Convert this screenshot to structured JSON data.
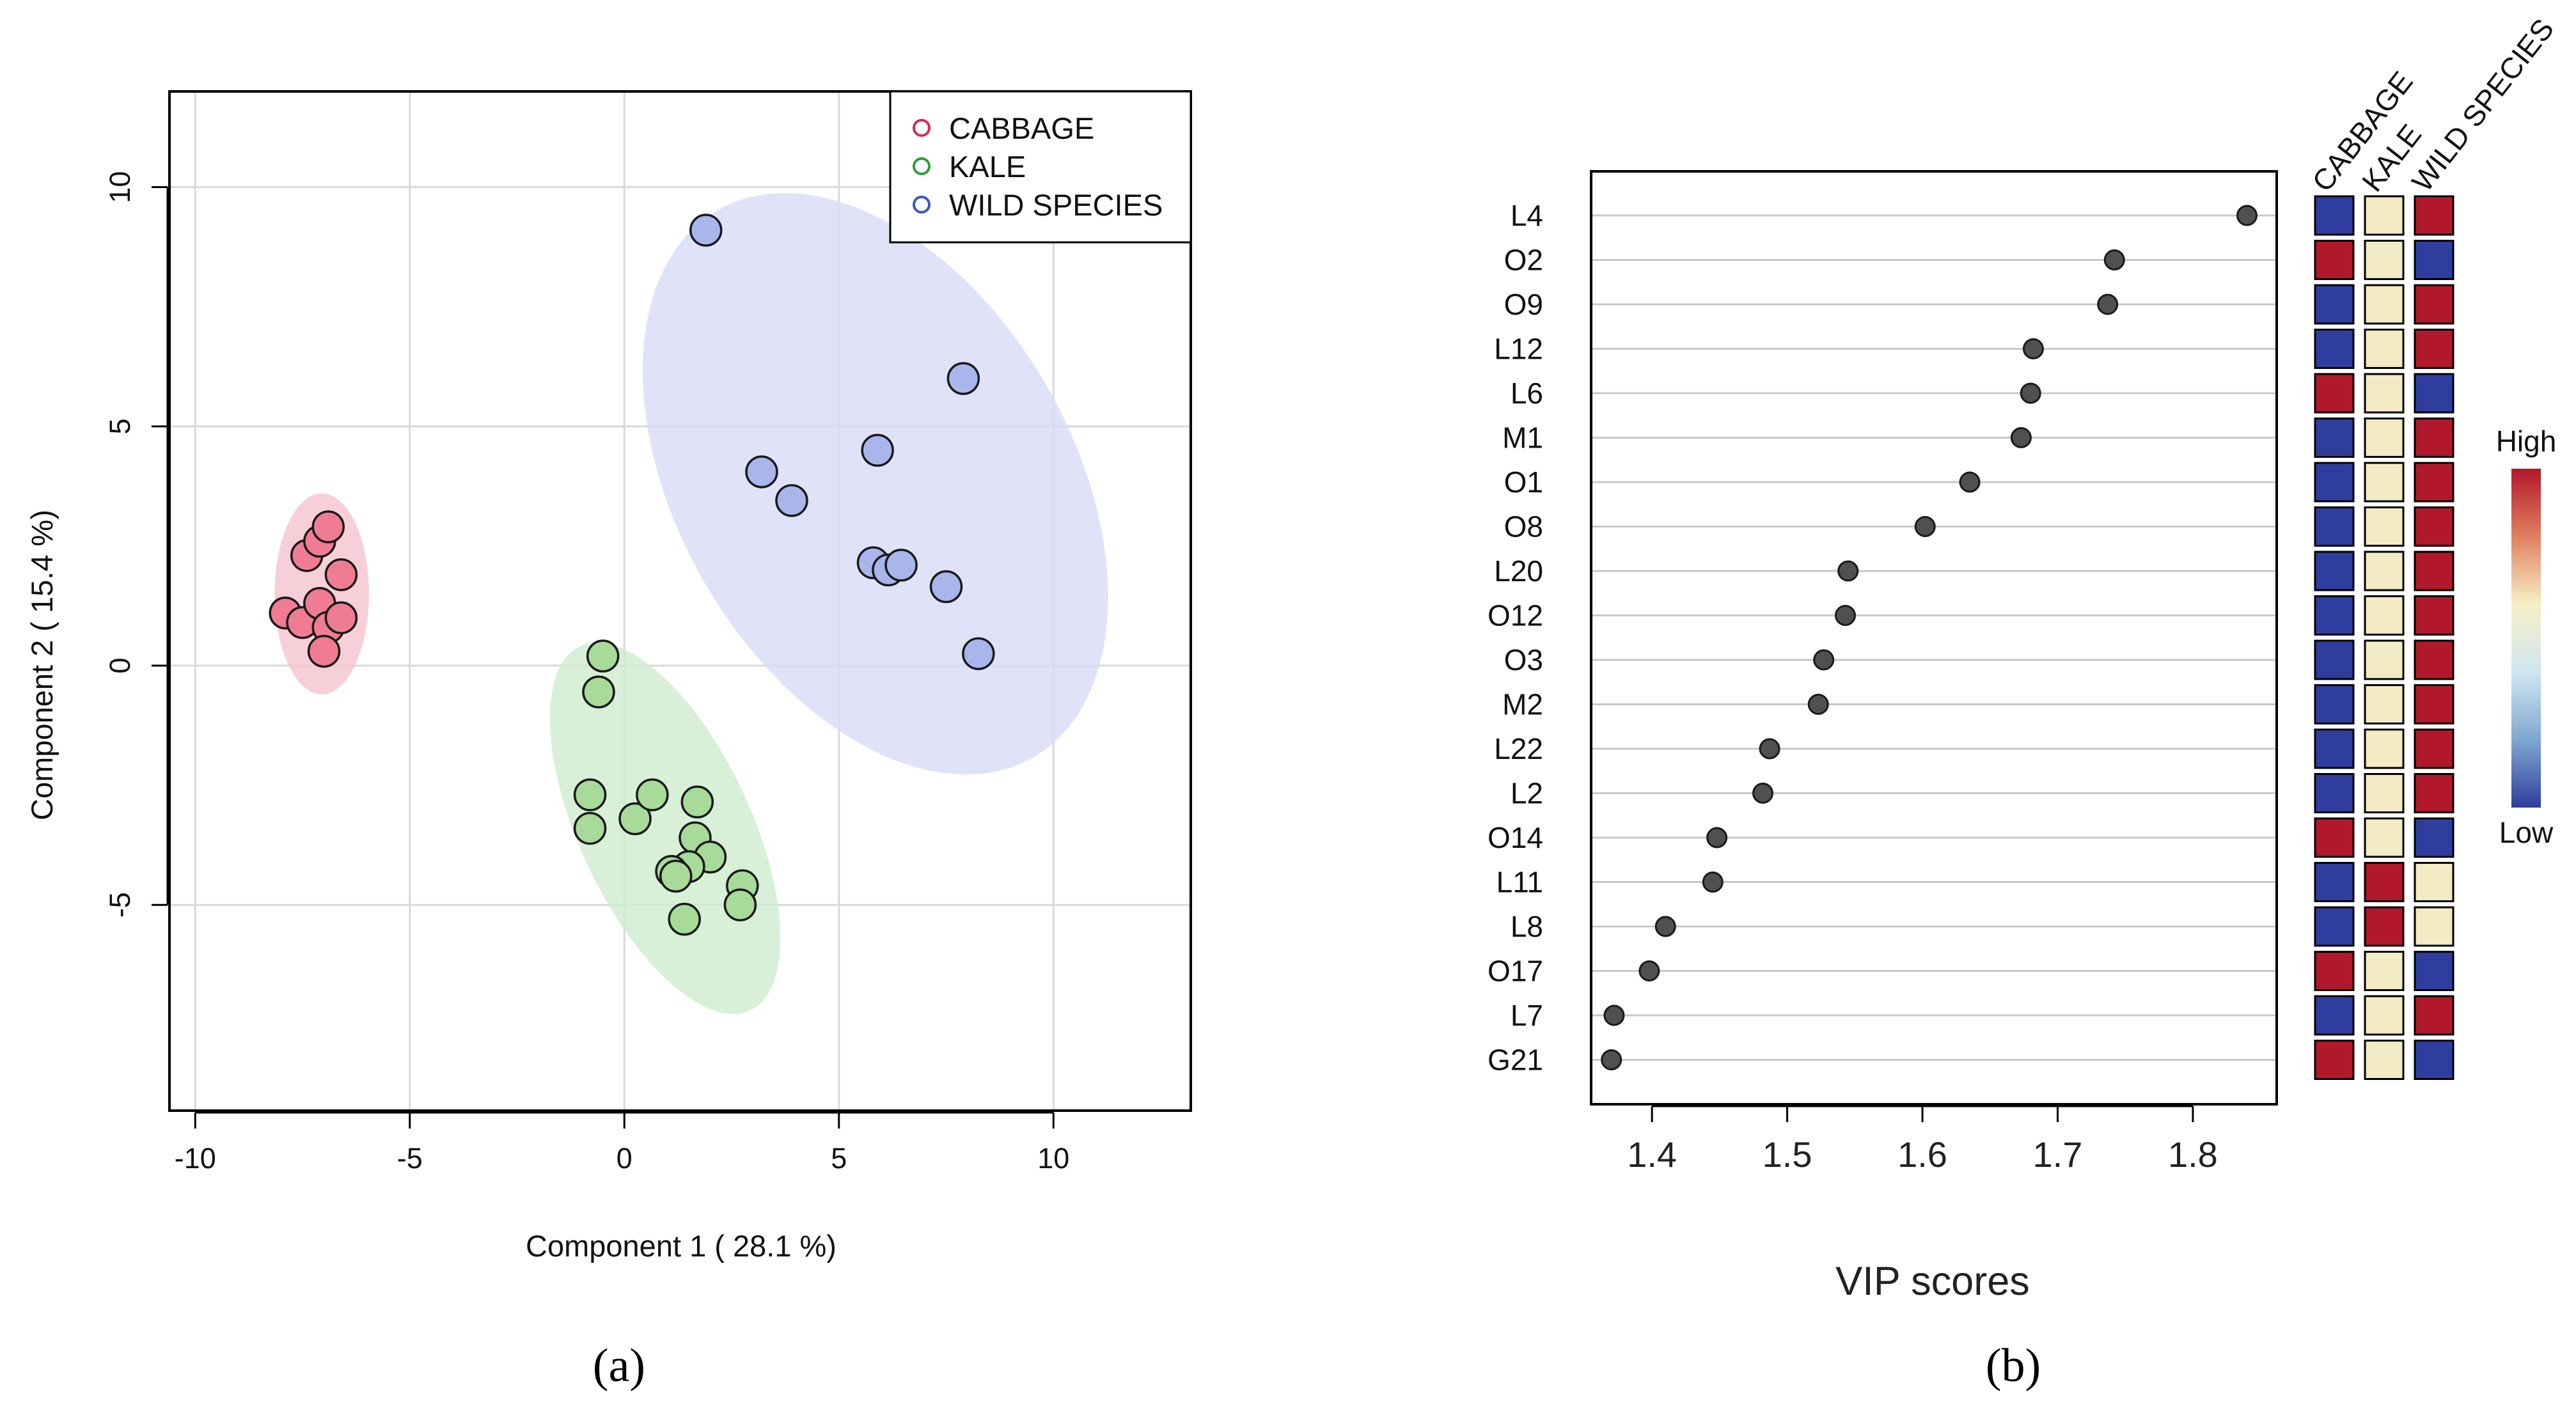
{
  "panel_a": {
    "label": "(a)",
    "chart_data": {
      "type": "scatter",
      "xlabel": "Component 1 ( 28.1 %)",
      "ylabel": "Component 2 ( 15.4 %)",
      "xlim": [
        -10.6,
        13.2
      ],
      "ylim": [
        -9.3,
        12.0
      ],
      "xticks": [
        -10,
        -5,
        0,
        5,
        10
      ],
      "yticks": [
        -5,
        0,
        5,
        10
      ],
      "grid": true,
      "legend_position": "top-right",
      "series": [
        {
          "name": "CABBAGE",
          "color": "#d6285a",
          "fill": "#f07c93",
          "ellipse_fill": "#f5c3cf",
          "points": [
            [
              -7.4,
              2.3
            ],
            [
              -7.1,
              2.6
            ],
            [
              -6.9,
              2.9
            ],
            [
              -6.6,
              1.9
            ],
            [
              -7.9,
              1.1
            ],
            [
              -7.5,
              0.9
            ],
            [
              -7.1,
              1.3
            ],
            [
              -6.9,
              0.8
            ],
            [
              -6.6,
              1.0
            ],
            [
              -7.0,
              0.3
            ]
          ]
        },
        {
          "name": "KALE",
          "color": "#2e9e3a",
          "fill": "#a8da9a",
          "ellipse_fill": "#cdeccd",
          "points": [
            [
              -0.5,
              0.2
            ],
            [
              -0.6,
              -0.55
            ],
            [
              -0.8,
              -2.7
            ],
            [
              -0.8,
              -3.4
            ],
            [
              0.25,
              -3.2
            ],
            [
              0.65,
              -2.7
            ],
            [
              1.7,
              -2.85
            ],
            [
              1.65,
              -3.6
            ],
            [
              2.0,
              -4.0
            ],
            [
              1.5,
              -4.2
            ],
            [
              1.1,
              -4.3
            ],
            [
              1.2,
              -4.4
            ],
            [
              2.75,
              -4.6
            ],
            [
              2.7,
              -5.0
            ],
            [
              1.4,
              -5.3
            ]
          ]
        },
        {
          "name": "WILD SPECIES",
          "color": "#3a55c8",
          "fill": "#a9b6ec",
          "ellipse_fill": "#d8dcf6",
          "points": [
            [
              1.9,
              9.1
            ],
            [
              7.9,
              6.0
            ],
            [
              5.9,
              4.5
            ],
            [
              3.2,
              4.05
            ],
            [
              3.9,
              3.45
            ],
            [
              5.8,
              2.15
            ],
            [
              6.15,
              2.0
            ],
            [
              6.45,
              2.1
            ],
            [
              7.5,
              1.65
            ],
            [
              8.25,
              0.25
            ]
          ]
        }
      ],
      "ellipses": [
        {
          "series": "CABBAGE",
          "cx": -7.05,
          "cy": 1.5,
          "rx": 1.1,
          "ry": 2.1,
          "angle": 0
        },
        {
          "series": "KALE",
          "cx": 0.95,
          "cy": -3.4,
          "rx": 2.0,
          "ry": 4.2,
          "angle": -25
        },
        {
          "series": "WILD SPECIES",
          "cx": 5.85,
          "cy": 3.8,
          "rx": 4.6,
          "ry": 6.6,
          "angle": -30
        }
      ]
    }
  },
  "panel_b": {
    "label": "(b)",
    "chart_data": {
      "type": "scatter",
      "xlabel": "VIP scores",
      "xlim": [
        1.355,
        1.862
      ],
      "xticks": [
        "1.4",
        "1.5",
        "1.6",
        "1.7",
        "1.8"
      ],
      "features": [
        "L4",
        "O2",
        "O9",
        "L12",
        "L6",
        "M1",
        "O1",
        "O8",
        "L20",
        "O12",
        "O3",
        "M2",
        "L22",
        "L2",
        "O14",
        "L11",
        "L8",
        "O17",
        "L7",
        "G21"
      ],
      "values": [
        1.84,
        1.742,
        1.737,
        1.682,
        1.68,
        1.673,
        1.635,
        1.602,
        1.545,
        1.543,
        1.527,
        1.523,
        1.487,
        1.482,
        1.448,
        1.445,
        1.41,
        1.398,
        1.372,
        1.37
      ],
      "heatmap_columns": [
        "CABBAGE",
        "KALE",
        "WILD SPECIES"
      ],
      "heatmap_levels": [
        [
          "low",
          "mid",
          "high"
        ],
        [
          "high",
          "mid",
          "low"
        ],
        [
          "low",
          "mid",
          "high"
        ],
        [
          "low",
          "mid",
          "high"
        ],
        [
          "high",
          "mid",
          "low"
        ],
        [
          "low",
          "mid",
          "high"
        ],
        [
          "low",
          "mid",
          "high"
        ],
        [
          "low",
          "mid",
          "high"
        ],
        [
          "low",
          "mid",
          "high"
        ],
        [
          "low",
          "mid",
          "high"
        ],
        [
          "low",
          "mid",
          "high"
        ],
        [
          "low",
          "mid",
          "high"
        ],
        [
          "low",
          "mid",
          "high"
        ],
        [
          "low",
          "mid",
          "high"
        ],
        [
          "high",
          "mid",
          "low"
        ],
        [
          "low",
          "high",
          "mid"
        ],
        [
          "low",
          "high",
          "mid"
        ],
        [
          "high",
          "mid",
          "low"
        ],
        [
          "low",
          "mid",
          "high"
        ],
        [
          "high",
          "mid",
          "low"
        ]
      ],
      "level_colors": {
        "high": "#b2182b",
        "mid": "#f2ebc3",
        "low": "#2f3e9e"
      },
      "colorbar": {
        "high_label": "High",
        "low_label": "Low",
        "stops": [
          "#b2182b",
          "#e08060",
          "#f6f0c6",
          "#cfe6f0",
          "#7fa7d0",
          "#2f3e9e"
        ]
      }
    }
  }
}
